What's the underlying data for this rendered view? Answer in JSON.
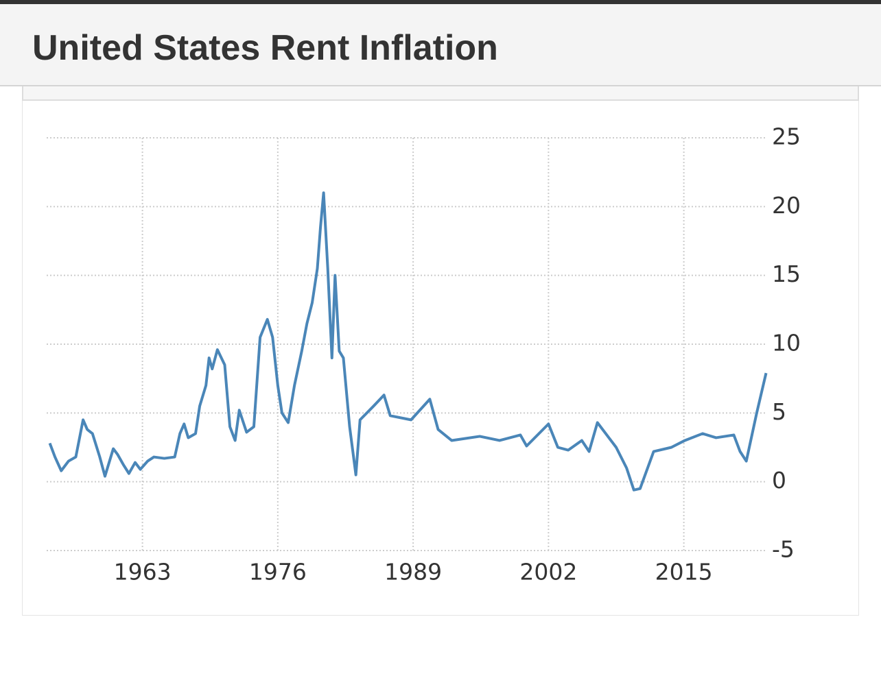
{
  "chart_data": {
    "type": "line",
    "title": "United States Rent Inflation",
    "x": [
      1954.1,
      1954.6,
      1955.2,
      1955.9,
      1956.6,
      1957.3,
      1957.7,
      1958.2,
      1958.9,
      1959.4,
      1960.2,
      1960.6,
      1961.2,
      1961.7,
      1962.3,
      1962.8,
      1963.5,
      1964.1,
      1965.1,
      1966.1,
      1966.6,
      1967.0,
      1967.4,
      1968.1,
      1968.5,
      1969.1,
      1969.4,
      1969.7,
      1970.2,
      1970.9,
      1971.4,
      1971.9,
      1972.3,
      1973.0,
      1973.7,
      1974.3,
      1975.0,
      1975.5,
      1976.0,
      1976.4,
      1977.0,
      1977.6,
      1978.3,
      1978.8,
      1979.3,
      1979.8,
      1980.1,
      1980.4,
      1980.8,
      1981.2,
      1981.5,
      1981.9,
      1982.3,
      1982.9,
      1983.5,
      1983.9,
      1985.2,
      1986.2,
      1986.8,
      1988.8,
      1990.6,
      1991.4,
      1992.7,
      1995.4,
      1997.3,
      1999.3,
      1999.9,
      2002.0,
      2002.9,
      2003.9,
      2005.2,
      2005.9,
      2006.7,
      2008.5,
      2009.5,
      2010.2,
      2010.8,
      2012.1,
      2013.8,
      2015.1,
      2016.8,
      2018.1,
      2019.8,
      2020.4,
      2021.0,
      2022.0,
      2022.9
    ],
    "series": [
      {
        "name": "Rent Inflation",
        "color": "#4a86b8",
        "values": [
          2.8,
          1.8,
          0.8,
          1.5,
          1.8,
          4.5,
          3.8,
          3.5,
          1.8,
          0.4,
          2.4,
          2.0,
          1.2,
          0.6,
          1.4,
          0.9,
          1.5,
          1.8,
          1.7,
          1.8,
          3.5,
          4.2,
          3.2,
          3.5,
          5.5,
          7.0,
          9.0,
          8.2,
          9.6,
          8.5,
          4.0,
          3.0,
          5.2,
          3.6,
          4.0,
          10.5,
          11.8,
          10.5,
          7.0,
          5.0,
          4.3,
          7.0,
          9.5,
          11.5,
          13.0,
          15.5,
          18.5,
          21.0,
          15.5,
          9.0,
          15.0,
          9.5,
          9.0,
          4.0,
          0.5,
          4.5,
          5.5,
          6.3,
          4.8,
          4.5,
          6.0,
          3.8,
          3.0,
          3.3,
          3.0,
          3.4,
          2.6,
          4.2,
          2.5,
          2.3,
          3.0,
          2.2,
          4.3,
          2.5,
          1.0,
          -0.6,
          -0.5,
          2.2,
          2.5,
          3.0,
          3.5,
          3.2,
          3.4,
          2.2,
          1.5,
          5.0,
          7.9
        ]
      }
    ],
    "xlim": [
      1953.8,
      2022.8
    ],
    "xticks": [
      1963,
      1976,
      1989,
      2002,
      2015
    ],
    "ylim": [
      -5,
      25
    ],
    "yticks": [
      -5,
      0,
      5,
      10,
      15,
      20,
      25
    ],
    "grid": true
  }
}
